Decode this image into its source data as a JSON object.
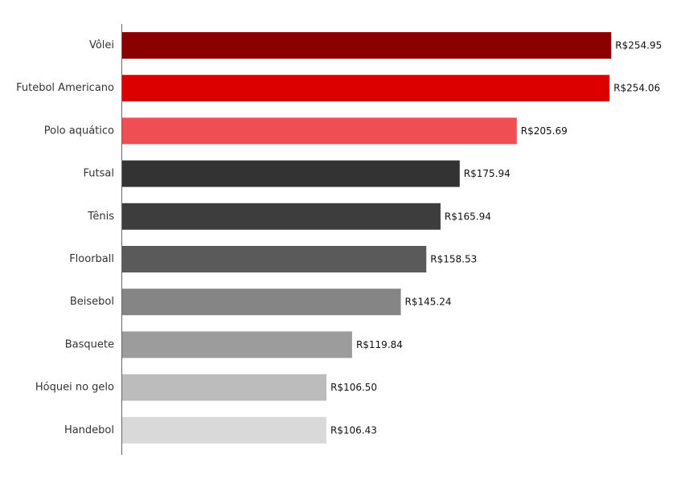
{
  "chart_data": {
    "type": "bar",
    "orientation": "horizontal",
    "title": "",
    "xlabel": "",
    "ylabel": "",
    "value_prefix": "R$",
    "xlim": [
      0,
      260
    ],
    "grid": false,
    "categories": [
      "Vôlei",
      "Futebol Americano",
      "Polo aquático",
      "Futsal",
      "Tênis",
      "Floorball",
      "Beisebol",
      "Basquete",
      "Hóquei no gelo",
      "Handebol"
    ],
    "values": [
      254.95,
      254.06,
      205.69,
      175.94,
      165.94,
      158.53,
      145.24,
      119.84,
      106.5,
      106.43
    ],
    "value_labels": [
      "R$254.95",
      "R$254.06",
      "R$205.69",
      "R$175.94",
      "R$165.94",
      "R$158.53",
      "R$145.24",
      "R$119.84",
      "R$106.50",
      "R$106.43"
    ],
    "colors": [
      "#8b0000",
      "#dd0000",
      "#ef4f52",
      "#333333",
      "#3d3d3d",
      "#5a5a5a",
      "#858585",
      "#9c9c9c",
      "#bcbcbc",
      "#d9d9d9"
    ]
  }
}
